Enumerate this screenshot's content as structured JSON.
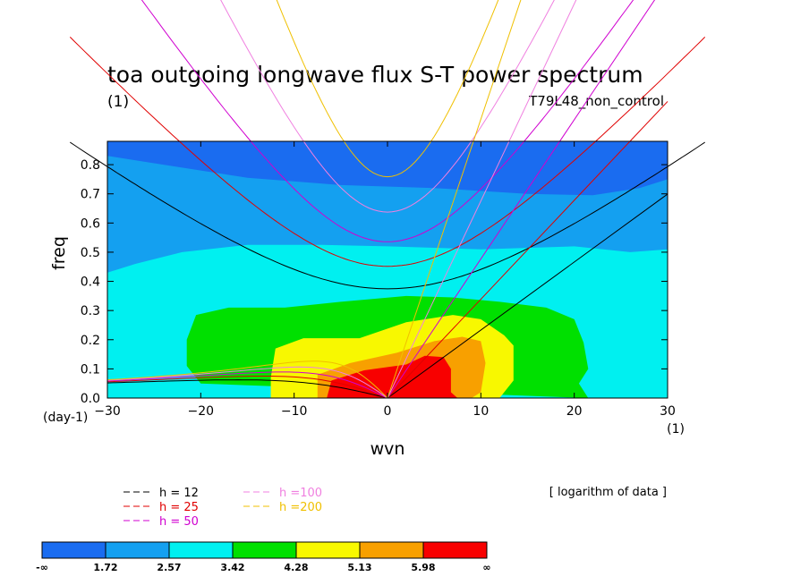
{
  "chart_data": {
    "type": "heatmap",
    "title": "toa outgoing longwave flux S-T power spectrum",
    "subtitle_left": "(1)",
    "subtitle_right": "T79L48_non_control",
    "xlabel": "wvn",
    "ylabel": "freq",
    "x_unit": "(1)",
    "y_unit": "(day-1)",
    "xlim": [
      -30,
      30
    ],
    "ylim": [
      0,
      0.88
    ],
    "xticks": [
      -30,
      -20,
      -10,
      0,
      10,
      20,
      30
    ],
    "yticks": [
      0.0,
      0.1,
      0.2,
      0.3,
      0.4,
      0.5,
      0.6,
      0.7,
      0.8
    ],
    "note": "[ logarithm of data ]",
    "colorbar": {
      "colors": [
        "#1a6cf0",
        "#14a0f0",
        "#00f0f0",
        "#00e000",
        "#f8f800",
        "#f8a000",
        "#f80000"
      ],
      "labels": [
        "-∞",
        "1.72",
        "2.57",
        "3.42",
        "4.28",
        "5.13",
        "5.98",
        "∞"
      ]
    },
    "regions": [
      {
        "level": 1,
        "points": [
          [
            -30,
            0.83
          ],
          [
            -24,
            0.8
          ],
          [
            -15,
            0.755
          ],
          [
            -5,
            0.73
          ],
          [
            5,
            0.72
          ],
          [
            15,
            0.7
          ],
          [
            22,
            0.695
          ],
          [
            27,
            0.72
          ],
          [
            30,
            0.75
          ],
          [
            30,
            0
          ],
          [
            -30,
            0
          ]
        ]
      },
      {
        "level": 2,
        "points": [
          [
            -30,
            0.43
          ],
          [
            -27,
            0.46
          ],
          [
            -22,
            0.5
          ],
          [
            -15,
            0.525
          ],
          [
            -7,
            0.525
          ],
          [
            0,
            0.52
          ],
          [
            10,
            0.51
          ],
          [
            20,
            0.52
          ],
          [
            26,
            0.5
          ],
          [
            30,
            0.51
          ],
          [
            30,
            0
          ],
          [
            -30,
            0
          ]
        ]
      },
      {
        "level": 3,
        "points": [
          [
            -20,
            0.05
          ],
          [
            -21.5,
            0.11
          ],
          [
            -21.5,
            0.2
          ],
          [
            -20.5,
            0.285
          ],
          [
            -17,
            0.31
          ],
          [
            -11,
            0.31
          ],
          [
            -5,
            0.33
          ],
          [
            2,
            0.35
          ],
          [
            7,
            0.345
          ],
          [
            12,
            0.33
          ],
          [
            17,
            0.31
          ],
          [
            20,
            0.27
          ],
          [
            21,
            0.19
          ],
          [
            21.5,
            0.1
          ],
          [
            20.5,
            0.05
          ],
          [
            21.5,
            0
          ]
        ]
      },
      {
        "level": 4,
        "points": [
          [
            -12.5,
            0
          ],
          [
            -12.5,
            0.07
          ],
          [
            -12,
            0.17
          ],
          [
            -9,
            0.205
          ],
          [
            -3,
            0.205
          ],
          [
            2,
            0.26
          ],
          [
            7,
            0.285
          ],
          [
            10,
            0.27
          ],
          [
            12.5,
            0.215
          ],
          [
            13.5,
            0.18
          ],
          [
            13.5,
            0.06
          ],
          [
            12,
            0
          ]
        ]
      },
      {
        "level": 5,
        "points": [
          [
            -7.5,
            0
          ],
          [
            -7.5,
            0.08
          ],
          [
            -4,
            0.12
          ],
          [
            1,
            0.155
          ],
          [
            5,
            0.195
          ],
          [
            8,
            0.21
          ],
          [
            10,
            0.195
          ],
          [
            10.5,
            0.12
          ],
          [
            10,
            0.02
          ],
          [
            9,
            0
          ]
        ]
      },
      {
        "level": 6,
        "points": [
          [
            -6.5,
            0
          ],
          [
            -6,
            0.06
          ],
          [
            -2.5,
            0.095
          ],
          [
            2,
            0.115
          ],
          [
            4,
            0.145
          ],
          [
            6,
            0.14
          ],
          [
            6.8,
            0.1
          ],
          [
            6.8,
            0.02
          ],
          [
            7.5,
            0
          ]
        ]
      }
    ],
    "dispersion_curves": [
      {
        "h": 12,
        "label": "h = 12",
        "color": "#000000",
        "speed_ms": 10.8
      },
      {
        "h": 25,
        "label": "h = 25",
        "color": "#e00000",
        "speed_ms": 15.7
      },
      {
        "h": 50,
        "label": "h = 50",
        "color": "#d000d0",
        "speed_ms": 22.1
      },
      {
        "h": 100,
        "label": "h =100",
        "color": "#f080e0",
        "speed_ms": 31.3
      },
      {
        "h": 200,
        "label": "h =200",
        "color": "#f0c000",
        "speed_ms": 44.3
      }
    ]
  }
}
